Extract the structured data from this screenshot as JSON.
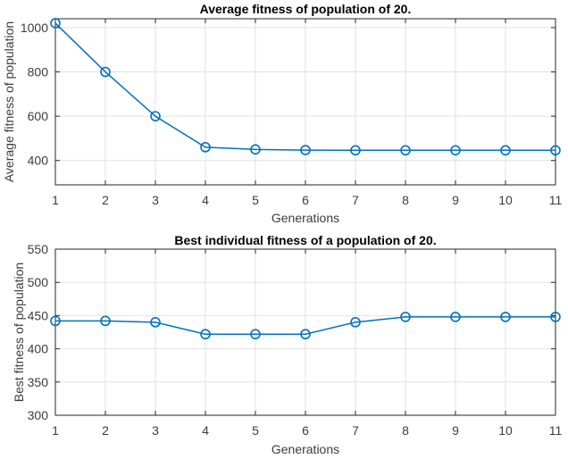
{
  "figure": {
    "background": "#ffffff"
  },
  "colors": {
    "line": "#0072BD",
    "grid": "#e2e2e2",
    "axis": "#262626",
    "tick_text": "#3c3c3c",
    "title_text": "#000000"
  },
  "chart_data": [
    {
      "type": "line",
      "title": "Average fitness of population of 20.",
      "xlabel": "Generations",
      "ylabel": "Average fitness of population",
      "x": [
        1,
        2,
        3,
        4,
        5,
        6,
        7,
        8,
        9,
        10,
        11
      ],
      "y": [
        1020,
        800,
        600,
        460,
        450,
        447,
        446,
        446,
        446,
        446,
        446
      ],
      "xlim": [
        1,
        11
      ],
      "ylim": [
        290,
        1040
      ],
      "xticks": [
        1,
        2,
        3,
        4,
        5,
        6,
        7,
        8,
        9,
        10,
        11
      ],
      "yticks": [
        400,
        600,
        800,
        1000
      ],
      "grid": true,
      "legend": null,
      "marker": "circle"
    },
    {
      "type": "line",
      "title": "Best individual fitness of a population of 20.",
      "xlabel": "Generations",
      "ylabel": "Best fitness of population",
      "x": [
        1,
        2,
        3,
        4,
        5,
        6,
        7,
        8,
        9,
        10,
        11
      ],
      "y": [
        442,
        442,
        440,
        422,
        422,
        422,
        440,
        448,
        448,
        448,
        448
      ],
      "xlim": [
        1,
        11
      ],
      "ylim": [
        300,
        550
      ],
      "xticks": [
        1,
        2,
        3,
        4,
        5,
        6,
        7,
        8,
        9,
        10,
        11
      ],
      "yticks": [
        300,
        350,
        400,
        450,
        500,
        550
      ],
      "grid": true,
      "legend": null,
      "marker": "circle"
    }
  ]
}
